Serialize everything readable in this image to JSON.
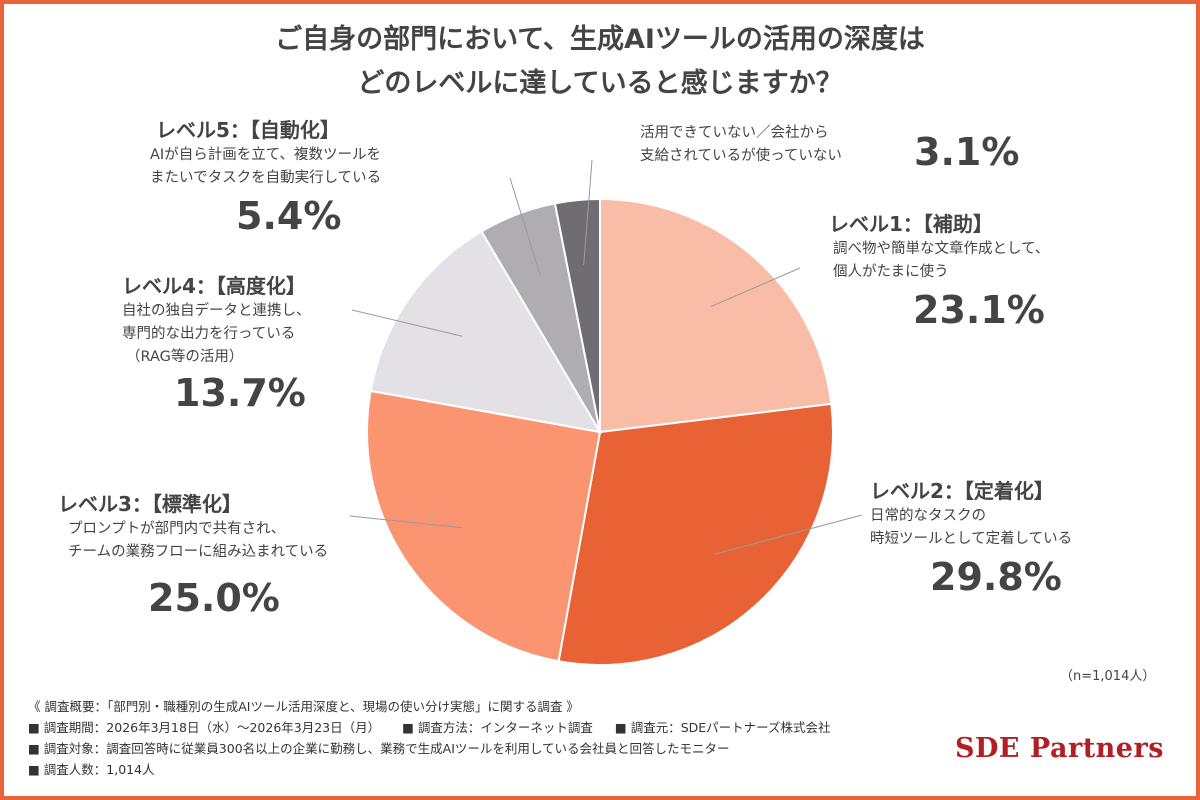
{
  "title": {
    "line1": "ご自身の部門において、生成AIツールの活用の深度は",
    "line2": "どのレベルに達していると感じますか？"
  },
  "chart_data": {
    "type": "pie",
    "start": "12 o'clock, clockwise",
    "slices": [
      {
        "head": "レベル1：【補助】",
        "desc": [
          "調べ物や簡単な文章作成として、",
          "個人がたまに使う"
        ],
        "value": 23.1,
        "label": "23.1%",
        "color": "#f9bca6"
      },
      {
        "head": "レベル2：【定着化】",
        "desc": [
          "日常的なタスクの",
          "時短ツールとして定着している"
        ],
        "value": 29.8,
        "label": "29.8%",
        "color": "#e86235"
      },
      {
        "head": "レベル3：【標準化】",
        "desc": [
          "プロンプトが部門内で共有され、",
          "チームの業務フローに組み込まれている"
        ],
        "value": 25.0,
        "label": "25.0%",
        "color": "#fb9571"
      },
      {
        "head": "レベル4：【高度化】",
        "desc": [
          "自社の独自データと連携し、",
          "専門的な出力を行っている",
          "（RAG等の活用）"
        ],
        "value": 13.7,
        "label": "13.7%",
        "color": "#e3e1e6"
      },
      {
        "head": "レベル5：【自動化】",
        "desc": [
          "AIが自ら計画を立て、複数ツールを",
          "またいでタスクを自動実行している"
        ],
        "value": 5.4,
        "label": "5.4%",
        "color": "#afadb2"
      },
      {
        "head": "",
        "desc": [
          "活用できていない／会社から",
          "支給されているが使っていない"
        ],
        "value": 3.1,
        "label": "3.1%",
        "color": "#6f6d72"
      }
    ]
  },
  "sample_note": "（n=1,014人）",
  "footer": {
    "summary": "《 調査概要：「部門別・職種別の生成AIツール活用深度と、現場の使い分け実態」に関する調査 》",
    "period": "■ 調査期間：2026年3月18日（水）〜2026年3月23日（月）",
    "method": "■ 調査方法：インターネット調査",
    "source": "■ 調査元：SDEパートナーズ株式会社",
    "target": "■ 調査対象：調査回答時に従業員300名以上の企業に勤務し、業務で生成AIツールを利用している会社員と回答したモニター",
    "count": "■ 調査人数：1,014人"
  },
  "brand": "SDE Partners"
}
